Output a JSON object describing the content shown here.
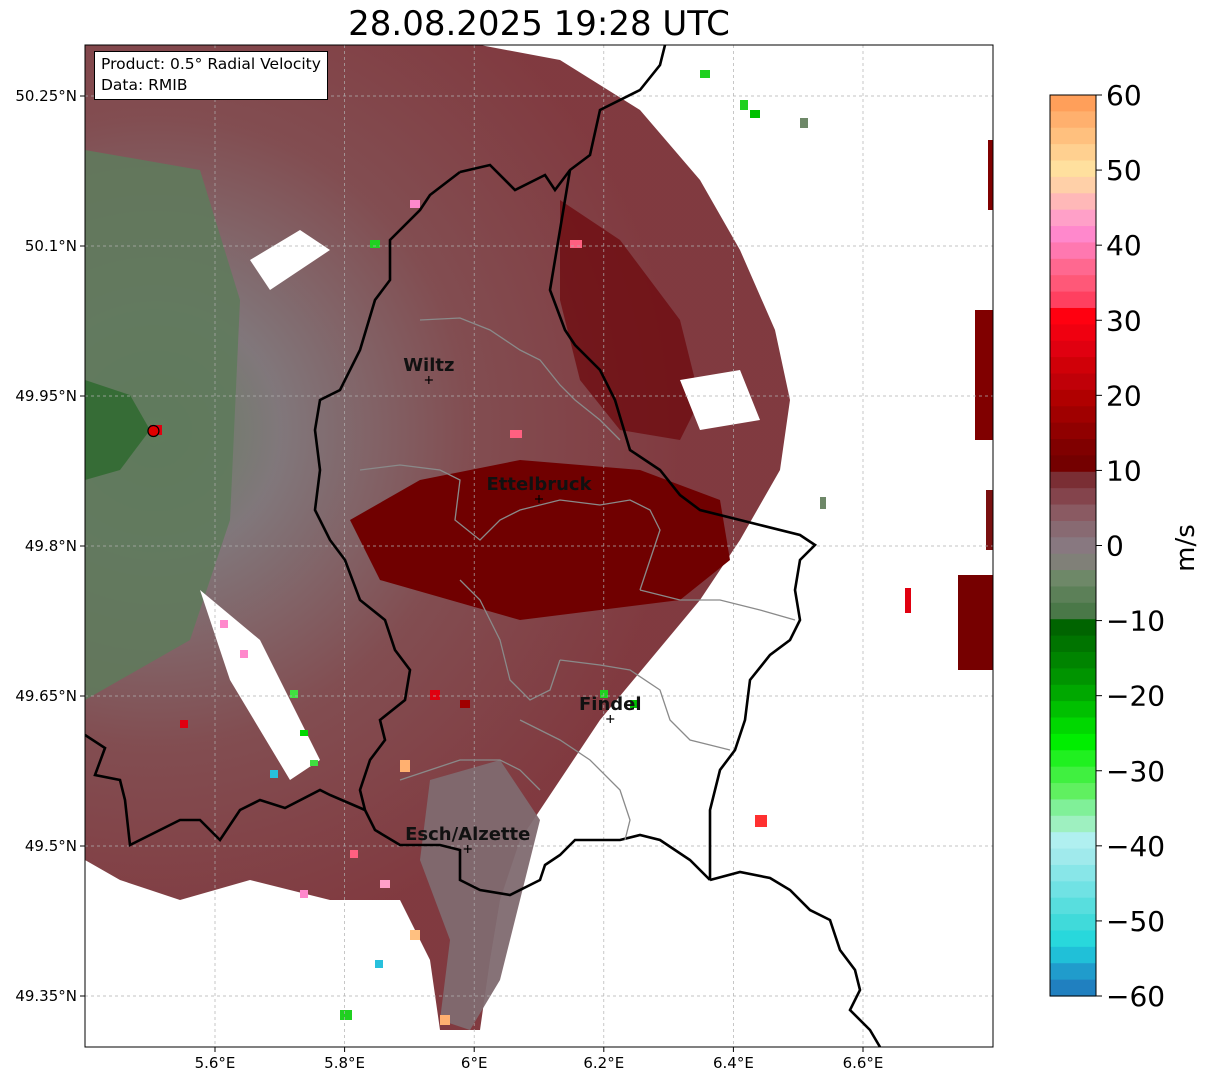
{
  "title": "28.08.2025 19:28 UTC",
  "info": {
    "product": "Product: 0.5° Radial Velocity",
    "data": "Data: RMIB"
  },
  "map": {
    "lon_range": [
      5.4,
      6.8
    ],
    "lat_range": [
      49.3,
      50.3
    ],
    "x_ticks": [
      5.6,
      5.8,
      6.0,
      6.2,
      6.4,
      6.6
    ],
    "x_tick_labels": [
      "5.6°E",
      "5.8°E",
      "6°E",
      "6.2°E",
      "6.4°E",
      "6.6°E"
    ],
    "y_ticks": [
      50.25,
      50.1,
      49.95,
      49.8,
      49.65,
      49.5,
      49.35
    ],
    "y_tick_labels": [
      "50.25°N",
      "50.1°N",
      "49.95°N",
      "49.8°N",
      "49.65°N",
      "49.5°N",
      "49.35°N"
    ],
    "gridlines": true,
    "radar_site": {
      "lon": 5.505,
      "lat": 49.915,
      "marker": "red-circle"
    },
    "cities": [
      {
        "name": "Wiltz",
        "lon": 5.93,
        "lat": 49.966
      },
      {
        "name": "Ettelbruck",
        "lon": 6.1,
        "lat": 49.847
      },
      {
        "name": "Findel",
        "lon": 6.21,
        "lat": 49.627
      },
      {
        "name": "Esch/Alzette",
        "lon": 5.99,
        "lat": 49.497
      }
    ]
  },
  "colorbar": {
    "label": "m/s",
    "min": -60,
    "max": 60,
    "ticks": [
      60,
      50,
      40,
      30,
      20,
      10,
      0,
      -10,
      -20,
      -30,
      -40,
      -50,
      -60
    ],
    "tick_labels": [
      "60",
      "50",
      "40",
      "30",
      "20",
      "10",
      "0",
      "−10",
      "−20",
      "−30",
      "−40",
      "−50",
      "−60"
    ],
    "colors_top_to_bottom": [
      "#ff9f5a",
      "#ffb06e",
      "#ffc07e",
      "#ffd090",
      "#ffe09e",
      "#ffd0a8",
      "#ffb8b8",
      "#ffa0c8",
      "#ff88cc",
      "#ff78b0",
      "#ff6890",
      "#ff5878",
      "#ff4060",
      "#ff0010",
      "#f00010",
      "#e00010",
      "#d00008",
      "#c00008",
      "#b00000",
      "#a00000",
      "#900000",
      "#800000",
      "#740000",
      "#7a2e34",
      "#84444c",
      "#8a5a62",
      "#886a72",
      "#887880",
      "#808078",
      "#6e8868",
      "#5c8058",
      "#4a7848",
      "#006400",
      "#007400",
      "#008400",
      "#009400",
      "#00a800",
      "#00c000",
      "#00d800",
      "#00ee00",
      "#20f020",
      "#40f040",
      "#60f060",
      "#80f098",
      "#9ef0c0",
      "#b0f0f0",
      "#a0eaec",
      "#88e6e8",
      "#70e2e4",
      "#58dede",
      "#40dada",
      "#28d8dc",
      "#20c0d8",
      "#209ccc",
      "#2080c0"
    ]
  }
}
